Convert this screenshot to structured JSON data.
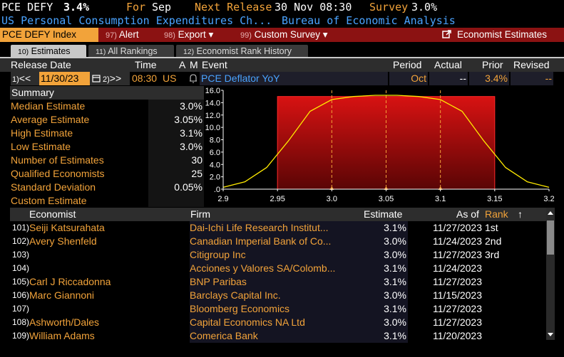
{
  "topline": {
    "ticker": "PCE DEFY",
    "value": "3.4%",
    "for_label": "For",
    "for_value": "Sep",
    "next_label": "Next Release",
    "next_value": "30 Nov 08:30",
    "survey_label": "Survey",
    "survey_value": "3.0%"
  },
  "subline": {
    "name": "US Personal Consumption Expenditures Ch...",
    "source": "Bureau of Economic Analysis"
  },
  "funcbar": {
    "ticker_index": "PCE DEFY Index",
    "alert_num": "97)",
    "alert_label": "Alert",
    "export_num": "98)",
    "export_label": "Export",
    "custom_num": "99)",
    "custom_label": "Custom Survey",
    "economist_label": "Economist Estimates",
    "dropdown_glyph": "▾"
  },
  "tabs": [
    {
      "num": "10)",
      "label": "Estimates"
    },
    {
      "num": "11)",
      "label": "All Rankings"
    },
    {
      "num": "12)",
      "label": "Economist Rank History"
    }
  ],
  "header": {
    "release_date": "Release Date",
    "time": "Time",
    "a": "A",
    "m": "M",
    "event": "Event",
    "period": "Period",
    "actual": "Actual",
    "prior": "Prior",
    "revised": "Revised"
  },
  "event_row": {
    "prev_num": "1)",
    "prev_glyph": "<<",
    "date": "11/30/23",
    "next_num": "2)",
    "next_glyph": ">>",
    "time": "08:30",
    "country": "US",
    "event": "PCE Deflator YoY",
    "period": "Oct",
    "actual": "--",
    "prior": "3.4%",
    "revised": "--"
  },
  "summary": {
    "title": "Summary",
    "rows": [
      {
        "label": "Median Estimate",
        "value": "3.0%"
      },
      {
        "label": "Average Estimate",
        "value": "3.05%"
      },
      {
        "label": "High Estimate",
        "value": "3.1%"
      },
      {
        "label": "Low Estimate",
        "value": "3.0%"
      },
      {
        "label": "Number of Estimates",
        "value": "30"
      },
      {
        "label": "Qualified Economists",
        "value": "25"
      },
      {
        "label": "Standard Deviation",
        "value": "0.05%"
      },
      {
        "label": "Custom Estimate",
        "value": ""
      }
    ]
  },
  "chart_data": {
    "type": "area",
    "title": "",
    "xlabel": "",
    "ylabel": "",
    "xlim": [
      2.9,
      3.2
    ],
    "ylim": [
      0,
      16
    ],
    "x_ticks": [
      "2.9",
      "2.95",
      "3.0",
      "3.05",
      "3.1",
      "3.15",
      "3.2"
    ],
    "x_tick_values": [
      2.9,
      2.95,
      3.0,
      3.05,
      3.1,
      3.15,
      3.2
    ],
    "y_ticks": [
      "16.0",
      "14.0",
      "12.0",
      "10.0",
      "8.0",
      "6.0",
      "4.0",
      "2.0",
      ".0"
    ],
    "y_tick_values": [
      16,
      14,
      12,
      10,
      8,
      6,
      4,
      2,
      0
    ],
    "range_low": 2.95,
    "range_high": 3.15,
    "marker_lines": [
      3.0,
      3.05,
      3.1
    ],
    "curve": {
      "x": [
        2.9,
        2.92,
        2.94,
        2.96,
        2.98,
        3.0,
        3.02,
        3.04,
        3.05,
        3.06,
        3.08,
        3.1,
        3.12,
        3.14,
        3.16,
        3.18,
        3.2
      ],
      "y": [
        0.3,
        1.2,
        3.5,
        7.8,
        12.6,
        14.5,
        15.0,
        15.2,
        15.2,
        15.2,
        15.0,
        14.5,
        12.6,
        7.8,
        3.5,
        1.2,
        0.3
      ]
    },
    "grid": false,
    "colors": {
      "fill": "#c40e0e",
      "curve": "#ffea00",
      "dash": "#f2a33a"
    }
  },
  "table": {
    "headers": {
      "economist": "Economist",
      "firm": "Firm",
      "estimate": "Estimate",
      "as_of": "As of",
      "rank": "Rank",
      "sort_glyph": "↑"
    },
    "rows": [
      {
        "num": "101)",
        "economist": "Seiji Katsurahata",
        "firm": "Dai-Ichi Life Research Institut...",
        "estimate": "3.1%",
        "as_of": "11/27/2023",
        "rank": "1st"
      },
      {
        "num": "102)",
        "economist": "Avery Shenfeld",
        "firm": "Canadian Imperial Bank of Co...",
        "estimate": "3.0%",
        "as_of": "11/24/2023",
        "rank": "2nd"
      },
      {
        "num": "103)",
        "economist": "",
        "firm": "Citigroup Inc",
        "estimate": "3.0%",
        "as_of": "11/27/2023",
        "rank": "3rd"
      },
      {
        "num": "104)",
        "economist": "",
        "firm": "Acciones y Valores SA/Colomb...",
        "estimate": "3.1%",
        "as_of": "11/24/2023",
        "rank": ""
      },
      {
        "num": "105)",
        "economist": "Carl J Riccadonna",
        "firm": "BNP Paribas",
        "estimate": "3.1%",
        "as_of": "11/27/2023",
        "rank": ""
      },
      {
        "num": "106)",
        "economist": "Marc Giannoni",
        "firm": "Barclays Capital Inc.",
        "estimate": "3.0%",
        "as_of": "11/15/2023",
        "rank": ""
      },
      {
        "num": "107)",
        "economist": "",
        "firm": "Bloomberg Economics",
        "estimate": "3.1%",
        "as_of": "11/27/2023",
        "rank": ""
      },
      {
        "num": "108)",
        "economist": "Ashworth/Dales",
        "firm": "Capital Economics NA Ltd",
        "estimate": "3.0%",
        "as_of": "11/27/2023",
        "rank": ""
      },
      {
        "num": "109)",
        "economist": "William Adams",
        "firm": "Comerica Bank",
        "estimate": "3.1%",
        "as_of": "11/20/2023",
        "rank": ""
      }
    ]
  }
}
